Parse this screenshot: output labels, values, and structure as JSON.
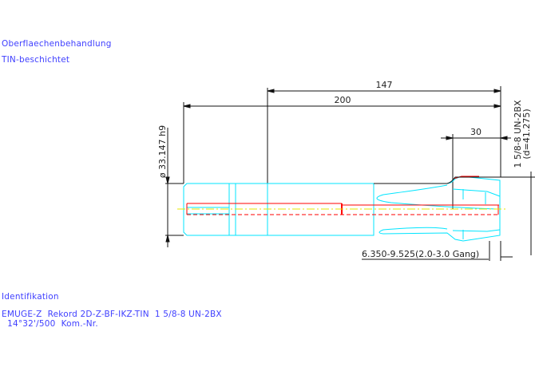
{
  "header": {
    "surface_label": "Oberflaechenbehandlung",
    "surface_value": "TIN-beschichtet"
  },
  "drawing": {
    "dim_147": "147",
    "dim_200": "200",
    "dim_30": "30",
    "dim_diameter": "ø 33.147 h9",
    "thread_line1": "1 5/8-8 UN-2BX",
    "thread_line2": "(d=41.275)",
    "core_hole": "6.350-9.525(2.0-3.0 Gang)",
    "colors": {
      "outline": "#00e5ff",
      "coolant": "#ff0000",
      "centerline": "#ffff00",
      "dimension": "#000000",
      "text": "#4040ff"
    }
  },
  "footer": {
    "ident_label": "Identifikation",
    "ident_line1": "EMUGE-Z  Rekord 2D-Z-BF-IKZ-TIN  1 5/8-8 UN-2BX",
    "ident_line2": "  14°32'/500  Kom.-Nr."
  }
}
